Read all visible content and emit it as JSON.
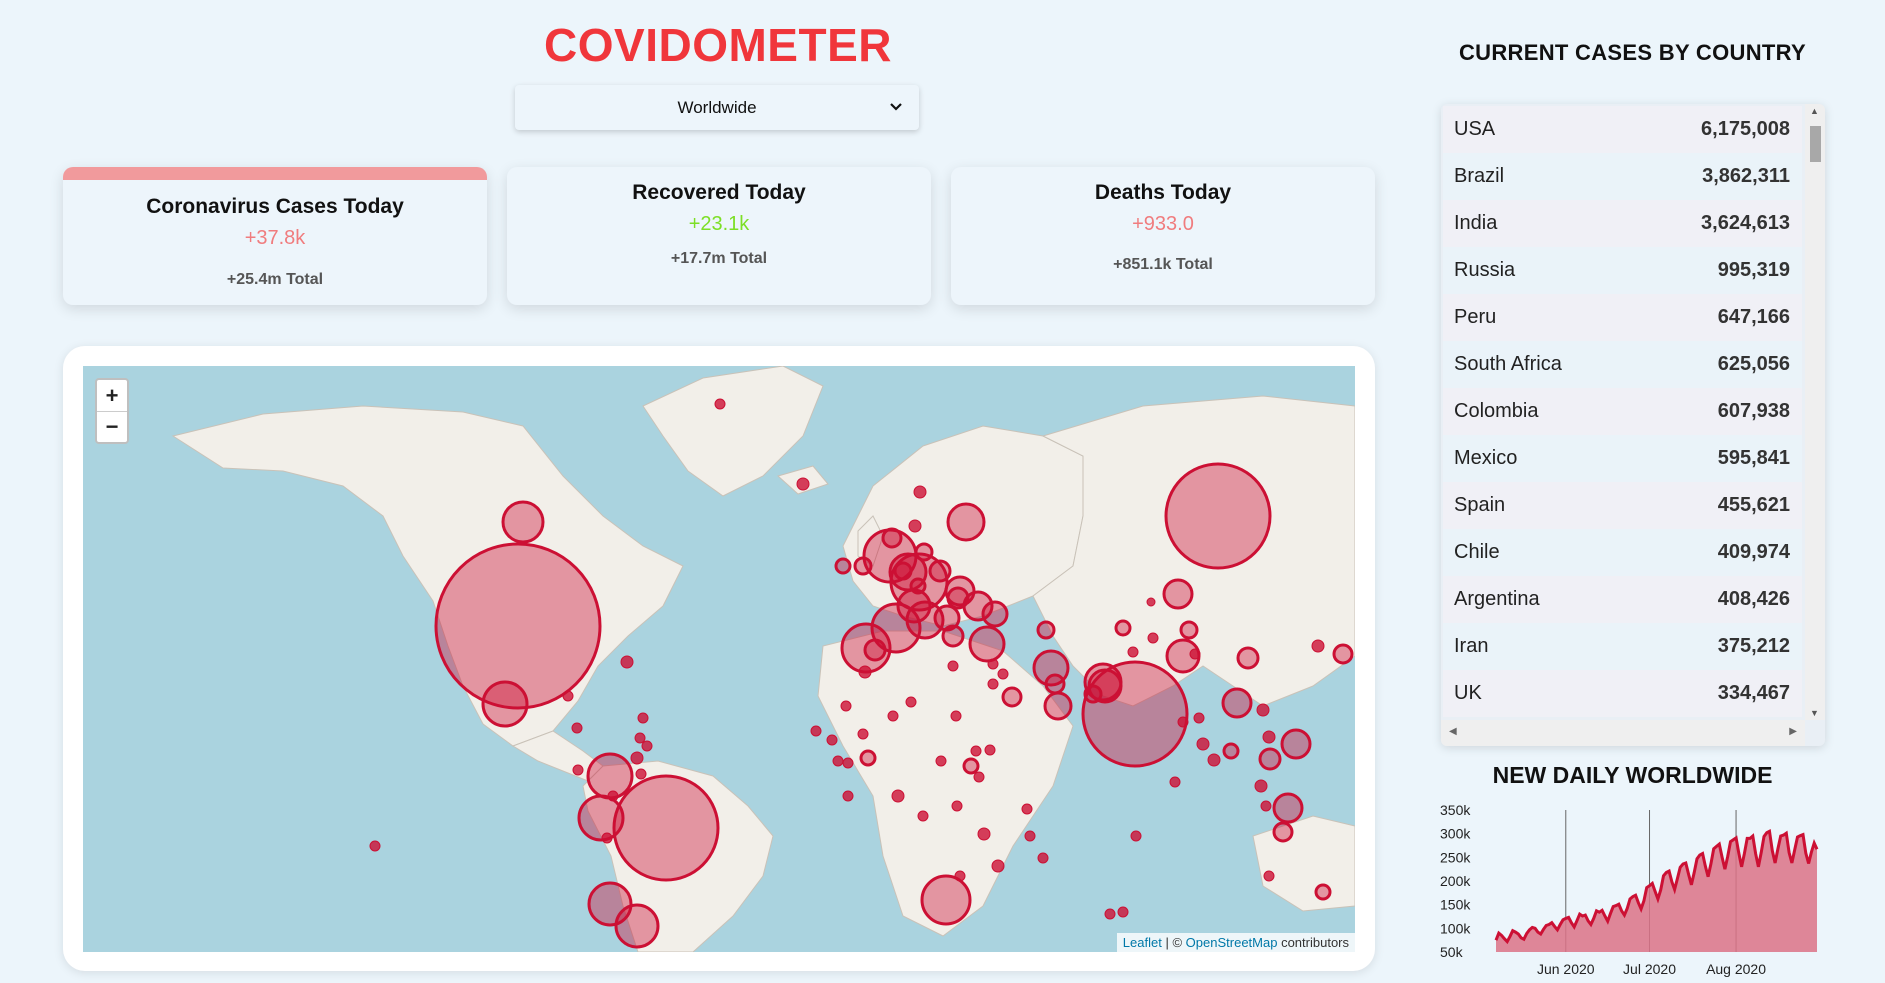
{
  "header": {
    "title": "COVIDOMETER"
  },
  "selector": {
    "value": "Worldwide"
  },
  "stats": [
    {
      "label": "Coronavirus Cases Today",
      "today": "+37.8k",
      "total": "+25.4m Total"
    },
    {
      "label": "Recovered Today",
      "today": "+23.1k",
      "total": "+17.7m Total"
    },
    {
      "label": "Deaths Today",
      "today": "+933.0",
      "total": "+851.1k Total"
    }
  ],
  "map": {
    "zoom_in": "+",
    "zoom_out": "−",
    "attribution": {
      "leaflet": "Leaflet",
      "sep": "| ©",
      "osm": "OpenStreetMap",
      "suffix": "contributors"
    }
  },
  "country_list": {
    "title": "CURRENT CASES BY COUNTRY",
    "rows": [
      {
        "name": "USA",
        "cases": "6,175,008"
      },
      {
        "name": "Brazil",
        "cases": "3,862,311"
      },
      {
        "name": "India",
        "cases": "3,624,613"
      },
      {
        "name": "Russia",
        "cases": "995,319"
      },
      {
        "name": "Peru",
        "cases": "647,166"
      },
      {
        "name": "South Africa",
        "cases": "625,056"
      },
      {
        "name": "Colombia",
        "cases": "607,938"
      },
      {
        "name": "Mexico",
        "cases": "595,841"
      },
      {
        "name": "Spain",
        "cases": "455,621"
      },
      {
        "name": "Chile",
        "cases": "409,974"
      },
      {
        "name": "Argentina",
        "cases": "408,426"
      },
      {
        "name": "Iran",
        "cases": "375,212"
      },
      {
        "name": "UK",
        "cases": "334,467"
      }
    ]
  },
  "colors": {
    "accent": "#f0363b",
    "recovered": "#7ddf26",
    "case_red": "#f07c7e",
    "bubble": "#cc1034",
    "chart_fill": "#dc7286"
  },
  "chart_data": {
    "type": "area",
    "title": "NEW DAILY WORLDWIDE",
    "yticks": [
      "350k",
      "300k",
      "250k",
      "200k",
      "150k",
      "100k",
      "50k"
    ],
    "ylim": [
      50000,
      350000
    ],
    "xticks": [
      {
        "label": "Jun 2020",
        "index": 25
      },
      {
        "label": "Jul 2020",
        "index": 55
      },
      {
        "label": "Aug 2020",
        "index": 86
      }
    ],
    "x": {
      "start": "2020-05-08",
      "end": "2020-08-31",
      "step_days": 1
    },
    "values": [
      75000,
      90000,
      85000,
      78000,
      72000,
      83000,
      95000,
      92000,
      88000,
      80000,
      77000,
      89000,
      97000,
      102000,
      100000,
      92000,
      88000,
      98000,
      106000,
      108000,
      112000,
      104000,
      97000,
      108000,
      118000,
      121000,
      123000,
      112000,
      103000,
      116000,
      130000,
      126000,
      128000,
      116000,
      108000,
      121000,
      137000,
      134000,
      138000,
      126000,
      115000,
      131000,
      146000,
      148000,
      151000,
      137000,
      128000,
      142000,
      162000,
      167000,
      170000,
      154000,
      141000,
      158000,
      186000,
      190000,
      195000,
      178000,
      162000,
      181000,
      211000,
      218000,
      221000,
      198000,
      182000,
      205000,
      229000,
      236000,
      238000,
      214000,
      192000,
      218000,
      247000,
      255000,
      258000,
      232000,
      209000,
      236000,
      268000,
      273000,
      278000,
      250000,
      225000,
      252000,
      283000,
      287000,
      291000,
      259000,
      230000,
      258000,
      290000,
      290000,
      295000,
      258000,
      230000,
      260000,
      294000,
      302000,
      305000,
      264000,
      238000,
      268000,
      295000,
      297000,
      301000,
      260000,
      238000,
      266000,
      293000,
      296000,
      298000,
      259000,
      237000,
      261000,
      280000,
      267000
    ]
  }
}
